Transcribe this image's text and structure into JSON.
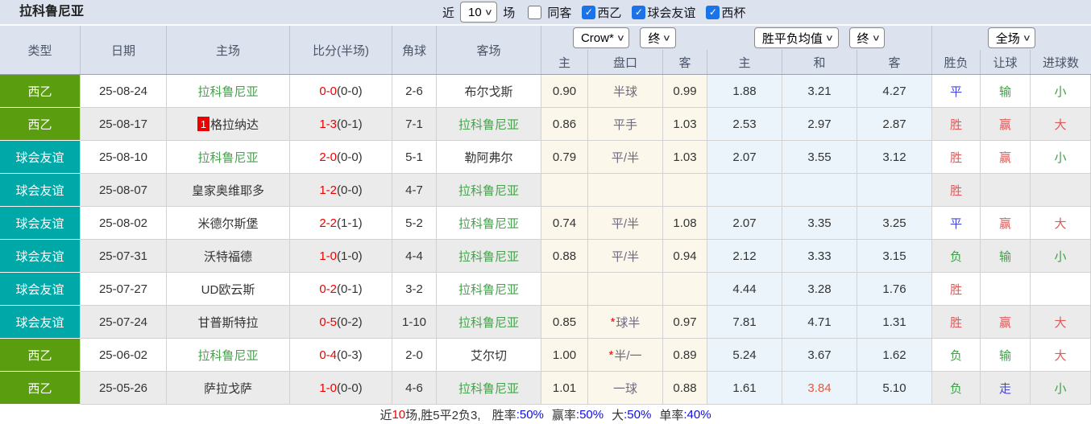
{
  "title": "拉科鲁尼亚",
  "topbar": {
    "recent_label": "近",
    "recent_select": "10",
    "matches_label": "场",
    "same_away": {
      "label": "同客",
      "checked": false
    },
    "filters": [
      {
        "label": "西乙",
        "checked": true
      },
      {
        "label": "球会友谊",
        "checked": true
      },
      {
        "label": "西杯",
        "checked": true
      }
    ]
  },
  "header": {
    "merged_columns": [
      "类型",
      "日期",
      "主场",
      "比分(半场)",
      "角球",
      "客场"
    ],
    "selects": {
      "company": "Crow*",
      "company_stage": "终",
      "avg_metric": "胜平负均值",
      "avg_stage": "终",
      "scope": "全场"
    },
    "sub_columns": [
      "主",
      "盘口",
      "客",
      "主",
      "和",
      "客",
      "胜负",
      "让球",
      "进球数"
    ]
  },
  "rows": [
    {
      "type": "西乙",
      "type_color": "league_green",
      "date": "25-08-24",
      "home": {
        "name": "拉科鲁尼亚",
        "self": true,
        "badge": ""
      },
      "score": "0-0",
      "half": "(0-0)",
      "corner": "2-6",
      "away": {
        "name": "布尔戈斯",
        "self": false
      },
      "odds": {
        "home": "0.90",
        "handicap": "半球",
        "star": false,
        "away": "0.99"
      },
      "avg": {
        "home": "1.88",
        "draw": "3.21",
        "away": "4.27",
        "draw_hot": false
      },
      "result": {
        "wdl": "平",
        "wdl_c": "blue",
        "handicap": "输",
        "handicap_c": "green",
        "goals": "小",
        "goals_c": "green"
      }
    },
    {
      "type": "西乙",
      "type_color": "league_green",
      "date": "25-08-17",
      "home": {
        "name": "格拉纳达",
        "self": false,
        "badge": "1"
      },
      "score": "1-3",
      "half": "(0-1)",
      "corner": "7-1",
      "away": {
        "name": "拉科鲁尼亚",
        "self": true
      },
      "odds": {
        "home": "0.86",
        "handicap": "平手",
        "star": false,
        "away": "1.03"
      },
      "avg": {
        "home": "2.53",
        "draw": "2.97",
        "away": "2.87",
        "draw_hot": false
      },
      "result": {
        "wdl": "胜",
        "wdl_c": "red",
        "handicap": "赢",
        "handicap_c": "red",
        "goals": "大",
        "goals_c": "red"
      }
    },
    {
      "type": "球会友谊",
      "type_color": "friendly_teal",
      "date": "25-08-10",
      "home": {
        "name": "拉科鲁尼亚",
        "self": true,
        "badge": ""
      },
      "score": "2-0",
      "half": "(0-0)",
      "corner": "5-1",
      "away": {
        "name": "勒阿弗尔",
        "self": false
      },
      "odds": {
        "home": "0.79",
        "handicap": "平/半",
        "star": false,
        "away": "1.03"
      },
      "avg": {
        "home": "2.07",
        "draw": "3.55",
        "away": "3.12",
        "draw_hot": false
      },
      "result": {
        "wdl": "胜",
        "wdl_c": "red",
        "handicap": "赢",
        "handicap_c": "red",
        "goals": "小",
        "goals_c": "green"
      }
    },
    {
      "type": "球会友谊",
      "type_color": "friendly_teal",
      "date": "25-08-07",
      "home": {
        "name": "皇家奥维耶多",
        "self": false,
        "badge": ""
      },
      "score": "1-2",
      "half": "(0-0)",
      "corner": "4-7",
      "away": {
        "name": "拉科鲁尼亚",
        "self": true
      },
      "odds": {
        "home": "",
        "handicap": "",
        "star": false,
        "away": ""
      },
      "avg": {
        "home": "",
        "draw": "",
        "away": "",
        "draw_hot": false
      },
      "result": {
        "wdl": "胜",
        "wdl_c": "red",
        "handicap": "",
        "handicap_c": "",
        "goals": "",
        "goals_c": ""
      }
    },
    {
      "type": "球会友谊",
      "type_color": "friendly_teal",
      "date": "25-08-02",
      "home": {
        "name": "米德尔斯堡",
        "self": false,
        "badge": ""
      },
      "score": "2-2",
      "half": "(1-1)",
      "corner": "5-2",
      "away": {
        "name": "拉科鲁尼亚",
        "self": true
      },
      "odds": {
        "home": "0.74",
        "handicap": "平/半",
        "star": false,
        "away": "1.08"
      },
      "avg": {
        "home": "2.07",
        "draw": "3.35",
        "away": "3.25",
        "draw_hot": false
      },
      "result": {
        "wdl": "平",
        "wdl_c": "blue",
        "handicap": "赢",
        "handicap_c": "red",
        "goals": "大",
        "goals_c": "red"
      }
    },
    {
      "type": "球会友谊",
      "type_color": "friendly_teal",
      "date": "25-07-31",
      "home": {
        "name": "沃特福德",
        "self": false,
        "badge": ""
      },
      "score": "1-0",
      "half": "(1-0)",
      "corner": "4-4",
      "away": {
        "name": "拉科鲁尼亚",
        "self": true
      },
      "odds": {
        "home": "0.88",
        "handicap": "平/半",
        "star": false,
        "away": "0.94"
      },
      "avg": {
        "home": "2.12",
        "draw": "3.33",
        "away": "3.15",
        "draw_hot": false
      },
      "result": {
        "wdl": "负",
        "wdl_c": "green",
        "handicap": "输",
        "handicap_c": "green",
        "goals": "小",
        "goals_c": "green"
      }
    },
    {
      "type": "球会友谊",
      "type_color": "friendly_teal",
      "date": "25-07-27",
      "home": {
        "name": "UD欧云斯",
        "self": false,
        "badge": ""
      },
      "score": "0-2",
      "half": "(0-1)",
      "corner": "3-2",
      "away": {
        "name": "拉科鲁尼亚",
        "self": true
      },
      "odds": {
        "home": "",
        "handicap": "",
        "star": false,
        "away": ""
      },
      "avg": {
        "home": "4.44",
        "draw": "3.28",
        "away": "1.76",
        "draw_hot": false
      },
      "result": {
        "wdl": "胜",
        "wdl_c": "red",
        "handicap": "",
        "handicap_c": "",
        "goals": "",
        "goals_c": ""
      }
    },
    {
      "type": "球会友谊",
      "type_color": "friendly_teal",
      "date": "25-07-24",
      "home": {
        "name": "甘普斯特拉",
        "self": false,
        "badge": ""
      },
      "score": "0-5",
      "half": "(0-2)",
      "corner": "1-10",
      "away": {
        "name": "拉科鲁尼亚",
        "self": true
      },
      "odds": {
        "home": "0.85",
        "handicap": "球半",
        "star": true,
        "away": "0.97"
      },
      "avg": {
        "home": "7.81",
        "draw": "4.71",
        "away": "1.31",
        "draw_hot": false
      },
      "result": {
        "wdl": "胜",
        "wdl_c": "red",
        "handicap": "赢",
        "handicap_c": "red",
        "goals": "大",
        "goals_c": "red"
      }
    },
    {
      "type": "西乙",
      "type_color": "league_green",
      "date": "25-06-02",
      "home": {
        "name": "拉科鲁尼亚",
        "self": true,
        "badge": ""
      },
      "score": "0-4",
      "half": "(0-3)",
      "corner": "2-0",
      "away": {
        "name": "艾尔切",
        "self": false
      },
      "odds": {
        "home": "1.00",
        "handicap": "半/一",
        "star": true,
        "away": "0.89"
      },
      "avg": {
        "home": "5.24",
        "draw": "3.67",
        "away": "1.62",
        "draw_hot": false
      },
      "result": {
        "wdl": "负",
        "wdl_c": "green",
        "handicap": "输",
        "handicap_c": "green",
        "goals": "大",
        "goals_c": "red"
      }
    },
    {
      "type": "西乙",
      "type_color": "league_green",
      "date": "25-05-26",
      "home": {
        "name": "萨拉戈萨",
        "self": false,
        "badge": ""
      },
      "score": "1-0",
      "half": "(0-0)",
      "corner": "4-6",
      "away": {
        "name": "拉科鲁尼亚",
        "self": true
      },
      "odds": {
        "home": "1.01",
        "handicap": "一球",
        "star": false,
        "away": "0.88"
      },
      "avg": {
        "home": "1.61",
        "draw": "3.84",
        "away": "5.10",
        "draw_hot": true
      },
      "result": {
        "wdl": "负",
        "wdl_c": "green",
        "handicap": "走",
        "handicap_c": "blue",
        "goals": "小",
        "goals_c": "green"
      }
    }
  ],
  "footer": {
    "prefix": "近",
    "count": "10",
    "record": "场,胜5平2负3, ",
    "stats": [
      {
        "label": "胜率",
        "value": ":50%"
      },
      {
        "label": "赢率",
        "value": ":50%"
      },
      {
        "label": "大",
        "value": ":50%"
      },
      {
        "label": "单率",
        "value": ":40%"
      }
    ]
  },
  "colors": {
    "league_green": "#5a9e10",
    "friendly_teal": "#00a8a8",
    "score_red": "#ee0000",
    "result_red": "#e05858",
    "result_green": "#3fa047",
    "result_blue": "#4545d8",
    "self_team_green": "#47a14d",
    "hot_value_red": "#e9573d",
    "footer_blue": "#0f0fe0",
    "checkbox_blue": "#1a73e8",
    "handicap_text": "#6e6a7e"
  }
}
